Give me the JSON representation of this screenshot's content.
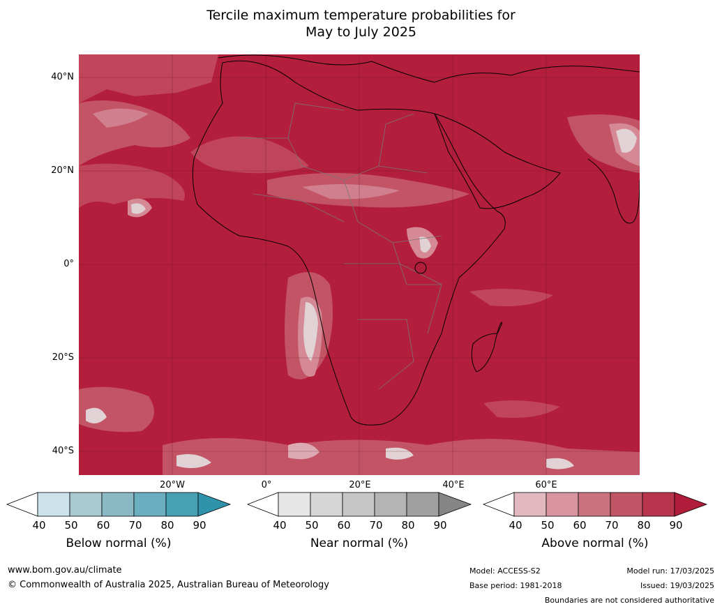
{
  "title": {
    "line1": "Tercile maximum temperature probabilities for",
    "line2": "May to July 2025"
  },
  "map": {
    "region": "Africa",
    "base_color": "#b31e3c",
    "lat_labels": [
      "40°N",
      "20°N",
      "0°",
      "20°S",
      "40°S"
    ],
    "lon_labels": [
      "20°W",
      "0°",
      "20°E",
      "40°E",
      "60°E"
    ]
  },
  "legends": [
    {
      "title": "Below normal (%)",
      "ticks": [
        "40",
        "50",
        "60",
        "70",
        "80",
        "90"
      ],
      "colors": [
        "#ffffff",
        "#cde3ea",
        "#a9c9d1",
        "#8ab8c5",
        "#6aaec0",
        "#48a1b3",
        "#2f94ab"
      ]
    },
    {
      "title": "Near normal (%)",
      "ticks": [
        "40",
        "50",
        "60",
        "70",
        "80",
        "90"
      ],
      "colors": [
        "#ffffff",
        "#e6e6e6",
        "#d6d6d6",
        "#c6c6c6",
        "#b4b4b4",
        "#a0a0a0",
        "#858585"
      ]
    },
    {
      "title": "Above normal (%)",
      "ticks": [
        "40",
        "50",
        "60",
        "70",
        "80",
        "90"
      ],
      "colors": [
        "#ffffff",
        "#e2b9c0",
        "#d8959f",
        "#cb727f",
        "#c05566",
        "#b8364d",
        "#b01c39"
      ]
    }
  ],
  "footer": {
    "url": "www.bom.gov.au/climate",
    "copyright": "© Commonwealth of Australia 2025, Australian Bureau of Meteorology",
    "model": "Model: ACCESS-S2",
    "base_period": "Base period: 1981-2018",
    "model_run": "Model run: 17/03/2025",
    "issued": "Issued: 19/03/2025",
    "disclaimer": "Boundaries are not considered authoritative"
  }
}
